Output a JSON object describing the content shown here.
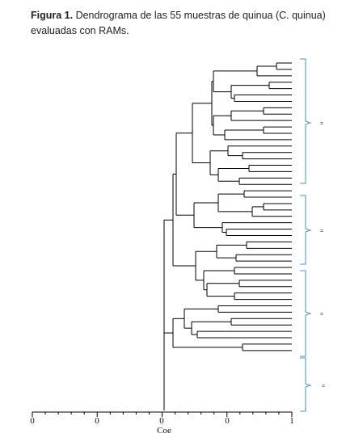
{
  "caption": {
    "label": "Figura 1.",
    "text": "Dendrograma de las 55 muestras de quinua (C. quinua) evaluadas con RAMs."
  },
  "chart": {
    "axis_title": "Coe",
    "tick_labels": [
      "0",
      "0",
      "0",
      "0",
      "1"
    ],
    "group_labels": [
      "=",
      "=",
      "=",
      "="
    ],
    "colors": {
      "bracket": "#4a90c8",
      "lines": "#000000"
    }
  }
}
